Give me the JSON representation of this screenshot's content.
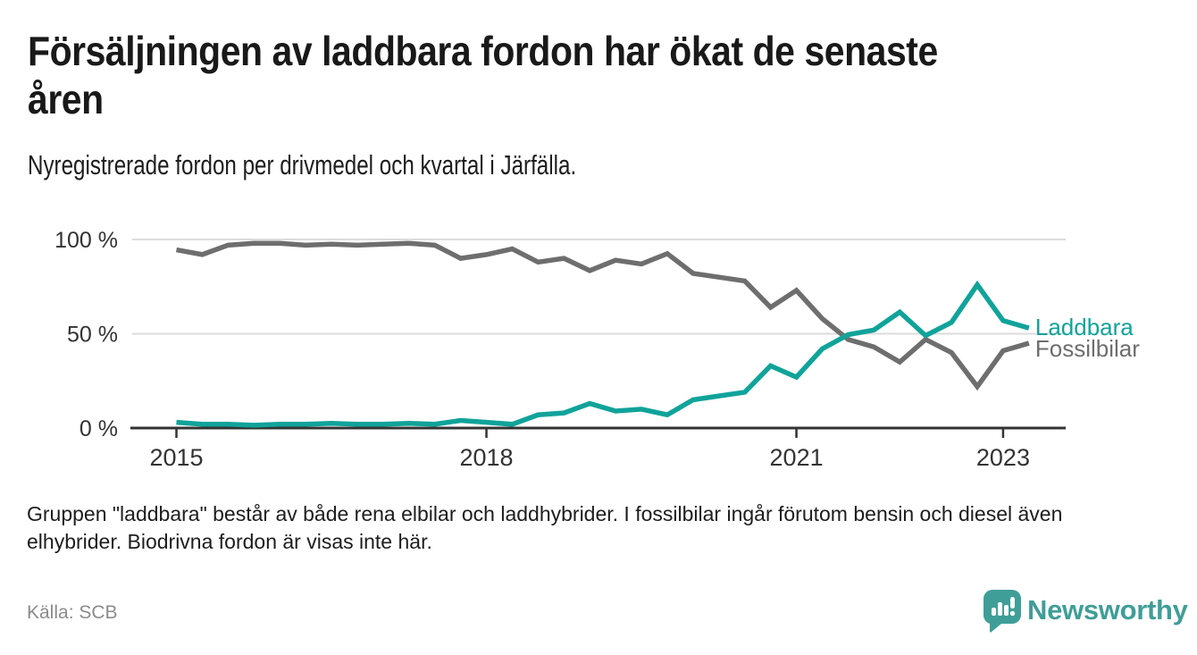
{
  "header": {
    "title_lines": [
      "Försäljningen av laddbara fordon har ökat de senaste",
      "åren"
    ],
    "subtitle": "Nyregistrerade fordon per drivmedel och kvartal i Järfälla."
  },
  "footnote": {
    "lines": [
      "Gruppen \"laddbara\" består av både rena elbilar och laddhybrider. I fossilbilar ingår förutom bensin och diesel även",
      "elhybrider. Biodrivna fordon är visas inte här."
    ]
  },
  "source": {
    "label": "Källa: SCB"
  },
  "brand": {
    "name": "Newsworthy",
    "color": "#3f9e97",
    "icon": "newsworthy-speech-bubble-bar-chart-icon"
  },
  "chart_data": {
    "type": "line",
    "unit": "percent",
    "title": "Nyregistrerade fordon per drivmedel och kvartal i Järfälla",
    "x": [
      "2015 Q1",
      "2015 Q2",
      "2015 Q3",
      "2015 Q4",
      "2016 Q1",
      "2016 Q2",
      "2016 Q3",
      "2016 Q4",
      "2017 Q1",
      "2017 Q2",
      "2017 Q3",
      "2017 Q4",
      "2018 Q1",
      "2018 Q2",
      "2018 Q3",
      "2018 Q4",
      "2019 Q1",
      "2019 Q2",
      "2019 Q3",
      "2019 Q4",
      "2020 Q1",
      "2020 Q2",
      "2020 Q3",
      "2020 Q4",
      "2021 Q1",
      "2021 Q2",
      "2021 Q3",
      "2021 Q4",
      "2022 Q1",
      "2022 Q2",
      "2022 Q3",
      "2022 Q4",
      "2023 Q1",
      "2023 Q2"
    ],
    "series": [
      {
        "name": "Laddbara",
        "color": "#10a39a",
        "values": [
          3,
          2,
          2,
          1.5,
          2,
          2,
          2.5,
          2,
          2,
          2.5,
          2,
          4,
          3,
          2,
          7,
          8,
          13,
          9,
          10,
          7,
          15,
          17,
          19,
          33,
          27,
          42,
          49.5,
          52,
          61.5,
          49,
          56,
          76,
          57,
          53
        ]
      },
      {
        "name": "Fossilbilar",
        "color": "#6e6e6e",
        "values": [
          94.5,
          92,
          97,
          98,
          98,
          97,
          97.5,
          97,
          97.5,
          98,
          97,
          90,
          92,
          95,
          88,
          90,
          83.5,
          89,
          87,
          92.5,
          82,
          80,
          78,
          64,
          73,
          58,
          47,
          43,
          35,
          47,
          40,
          22,
          41,
          45
        ]
      }
    ],
    "ylim": [
      0,
      100
    ],
    "yticks": [
      {
        "value": 0,
        "label": "0 %"
      },
      {
        "value": 50,
        "label": "50 %"
      },
      {
        "value": 100,
        "label": "100 %"
      }
    ],
    "xticks": [
      {
        "index": 0,
        "label": "2015"
      },
      {
        "index": 12,
        "label": "2018"
      },
      {
        "index": 24,
        "label": "2021"
      },
      {
        "index": 32,
        "label": "2023"
      }
    ],
    "grid": "horizontal",
    "legend_position": "line-end-labels",
    "colors": {
      "gridline": "#dcdcdc",
      "axis": "#333333",
      "tick_text": "#333333"
    }
  }
}
